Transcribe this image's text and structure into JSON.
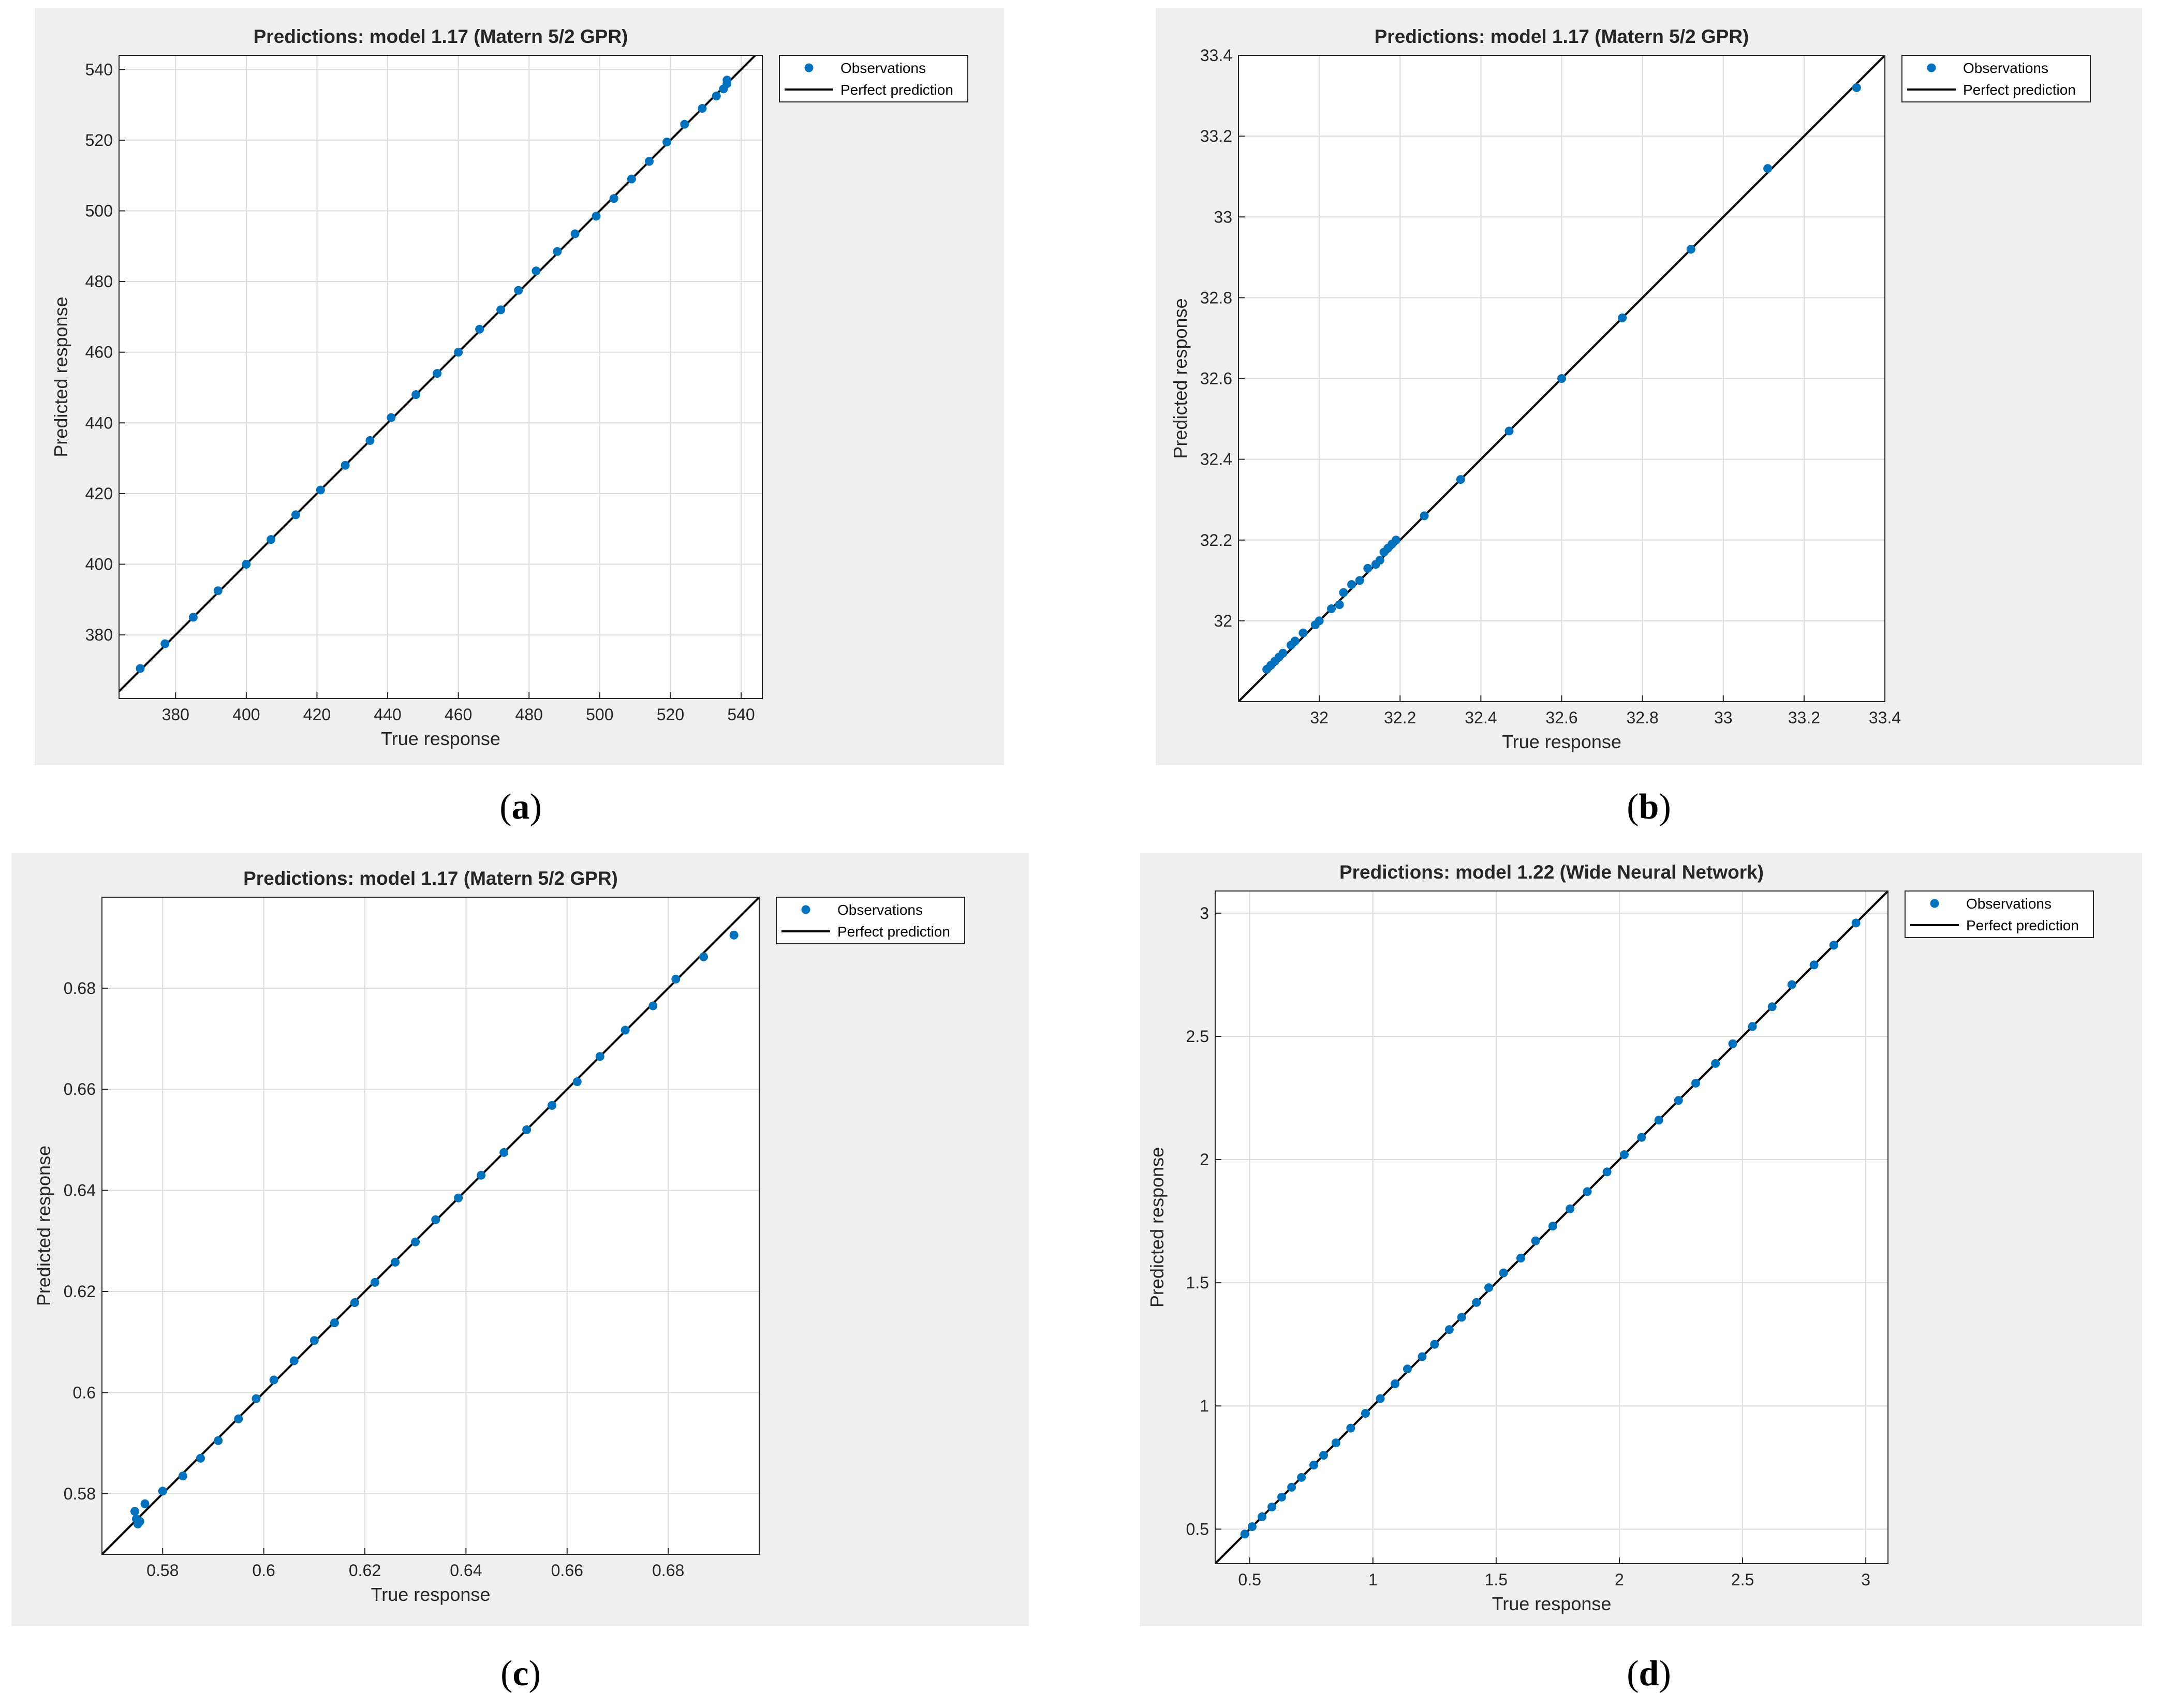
{
  "colors": {
    "marker": "#0072BD",
    "line": "#000000",
    "grid": "#dcdcdc",
    "figure_bg": "#efefef"
  },
  "chart_data": [
    {
      "type": "scatter",
      "caption": "a",
      "title": "Predictions: model 1.17 (Matern 5/2 GPR)",
      "xlabel": "True response",
      "ylabel": "Predicted response",
      "xlim": [
        364,
        546
      ],
      "ylim": [
        362,
        544
      ],
      "xticks": [
        380,
        400,
        420,
        440,
        460,
        480,
        500,
        520,
        540
      ],
      "yticks": [
        380,
        400,
        420,
        440,
        460,
        480,
        500,
        520,
        540
      ],
      "xtick_labels": [
        "380",
        "400",
        "420",
        "440",
        "460",
        "480",
        "500",
        "520",
        "540"
      ],
      "ytick_labels": [
        "380",
        "400",
        "420",
        "440",
        "460",
        "480",
        "500",
        "520",
        "540"
      ],
      "grid": true,
      "legend": {
        "position": "outside-right-top",
        "entries": [
          "Observations",
          "Perfect prediction"
        ]
      },
      "series": [
        {
          "kind": "points",
          "name": "Observations",
          "x": [
            370,
            377,
            385,
            392,
            400,
            407,
            414,
            421,
            428,
            435,
            441,
            448,
            454,
            460,
            466,
            472,
            477,
            482,
            488,
            493,
            499,
            504,
            509,
            514,
            519,
            524,
            529,
            533,
            535,
            536,
            536
          ],
          "y": [
            370.5,
            377.5,
            385,
            392.5,
            400,
            407,
            414,
            421,
            428,
            435,
            441.5,
            448,
            454,
            460,
            466.5,
            472,
            477.5,
            483,
            488.5,
            493.5,
            498.5,
            503.5,
            509,
            514,
            519.5,
            524.5,
            529,
            532.5,
            534.5,
            536,
            537
          ]
        },
        {
          "kind": "line",
          "name": "Perfect prediction",
          "x": [
            364,
            546
          ],
          "y": [
            364,
            546
          ]
        }
      ]
    },
    {
      "type": "scatter",
      "caption": "b",
      "title": "Predictions: model 1.17 (Matern 5/2 GPR)",
      "xlabel": "True response",
      "ylabel": "Predicted response",
      "xlim": [
        31.8,
        33.4
      ],
      "ylim": [
        31.8,
        33.4
      ],
      "xticks": [
        32,
        32.2,
        32.4,
        32.6,
        32.8,
        33,
        33.2,
        33.4
      ],
      "yticks": [
        32,
        32.2,
        32.4,
        32.6,
        32.8,
        33,
        33.2,
        33.4
      ],
      "xtick_labels": [
        "32",
        "32.2",
        "32.4",
        "32.6",
        "32.8",
        "33",
        "33.2",
        "33.4"
      ],
      "ytick_labels": [
        "32",
        "32.2",
        "32.4",
        "32.6",
        "32.8",
        "33",
        "33.2",
        "33.4"
      ],
      "grid": true,
      "legend": {
        "position": "outside-right-top",
        "entries": [
          "Observations",
          "Perfect prediction"
        ]
      },
      "series": [
        {
          "kind": "points",
          "name": "Observations",
          "x": [
            31.87,
            31.88,
            31.89,
            31.9,
            31.91,
            31.93,
            31.94,
            31.96,
            31.99,
            32.0,
            32.03,
            32.05,
            32.06,
            32.08,
            32.1,
            32.12,
            32.14,
            32.15,
            32.16,
            32.17,
            32.18,
            32.19,
            32.26,
            32.35,
            32.47,
            32.6,
            32.75,
            32.92,
            33.11,
            33.33
          ],
          "y": [
            31.88,
            31.89,
            31.9,
            31.91,
            31.92,
            31.94,
            31.95,
            31.97,
            31.99,
            32.0,
            32.03,
            32.04,
            32.07,
            32.09,
            32.1,
            32.13,
            32.14,
            32.15,
            32.17,
            32.18,
            32.19,
            32.2,
            32.26,
            32.35,
            32.47,
            32.6,
            32.75,
            32.92,
            33.12,
            33.32
          ]
        },
        {
          "kind": "line",
          "name": "Perfect prediction",
          "x": [
            31.8,
            33.4
          ],
          "y": [
            31.8,
            33.4
          ]
        }
      ]
    },
    {
      "type": "scatter",
      "caption": "c",
      "title": "Predictions: model 1.17 (Matern 5/2 GPR)",
      "xlabel": "True response",
      "ylabel": "Predicted response",
      "xlim": [
        0.568,
        0.698
      ],
      "ylim": [
        0.568,
        0.698
      ],
      "xticks": [
        0.58,
        0.6,
        0.62,
        0.64,
        0.66,
        0.68
      ],
      "yticks": [
        0.58,
        0.6,
        0.62,
        0.64,
        0.66,
        0.68
      ],
      "xtick_labels": [
        "0.58",
        "0.6",
        "0.62",
        "0.64",
        "0.66",
        "0.68"
      ],
      "ytick_labels": [
        "0.58",
        "0.6",
        "0.62",
        "0.64",
        "0.66",
        "0.68"
      ],
      "grid": true,
      "legend": {
        "position": "outside-right-top",
        "entries": [
          "Observations",
          "Perfect prediction"
        ]
      },
      "series": [
        {
          "kind": "points",
          "name": "Observations",
          "x": [
            0.5745,
            0.5748,
            0.5751,
            0.5755,
            0.5765,
            0.58,
            0.584,
            0.5875,
            0.591,
            0.595,
            0.5985,
            0.602,
            0.606,
            0.61,
            0.614,
            0.618,
            0.622,
            0.626,
            0.63,
            0.634,
            0.6385,
            0.643,
            0.6475,
            0.652,
            0.657,
            0.662,
            0.6665,
            0.6715,
            0.677,
            0.6815,
            0.687,
            0.693
          ],
          "y": [
            0.5765,
            0.575,
            0.574,
            0.5745,
            0.578,
            0.5805,
            0.5835,
            0.587,
            0.5905,
            0.5948,
            0.5988,
            0.6025,
            0.6063,
            0.6103,
            0.6138,
            0.6178,
            0.6218,
            0.6258,
            0.6298,
            0.6342,
            0.6385,
            0.643,
            0.6475,
            0.652,
            0.6568,
            0.6615,
            0.6665,
            0.6717,
            0.6765,
            0.6818,
            0.6862,
            0.6905
          ]
        },
        {
          "kind": "line",
          "name": "Perfect prediction",
          "x": [
            0.568,
            0.698
          ],
          "y": [
            0.568,
            0.698
          ]
        }
      ]
    },
    {
      "type": "scatter",
      "caption": "d",
      "title": "Predictions: model 1.22 (Wide Neural Network)",
      "xlabel": "True response",
      "ylabel": "Predicted response",
      "xlim": [
        0.36,
        3.09
      ],
      "ylim": [
        0.36,
        3.09
      ],
      "xticks": [
        0.5,
        1,
        1.5,
        2,
        2.5,
        3
      ],
      "yticks": [
        0.5,
        1,
        1.5,
        2,
        2.5,
        3
      ],
      "xtick_labels": [
        "0.5",
        "1",
        "1.5",
        "2",
        "2.5",
        "3"
      ],
      "ytick_labels": [
        "0.5",
        "1",
        "1.5",
        "2",
        "2.5",
        "3"
      ],
      "grid": true,
      "legend": {
        "position": "outside-right-top",
        "entries": [
          "Observations",
          "Perfect prediction"
        ]
      },
      "series": [
        {
          "kind": "points",
          "name": "Observations",
          "x": [
            0.48,
            0.51,
            0.55,
            0.59,
            0.63,
            0.67,
            0.71,
            0.76,
            0.8,
            0.85,
            0.91,
            0.97,
            1.03,
            1.09,
            1.14,
            1.2,
            1.25,
            1.31,
            1.36,
            1.42,
            1.47,
            1.53,
            1.6,
            1.66,
            1.73,
            1.8,
            1.87,
            1.95,
            2.02,
            2.09,
            2.16,
            2.24,
            2.31,
            2.39,
            2.46,
            2.54,
            2.62,
            2.7,
            2.79,
            2.87,
            2.96
          ],
          "y": [
            0.48,
            0.51,
            0.55,
            0.59,
            0.63,
            0.67,
            0.71,
            0.76,
            0.8,
            0.85,
            0.91,
            0.97,
            1.03,
            1.09,
            1.15,
            1.2,
            1.25,
            1.31,
            1.36,
            1.42,
            1.48,
            1.54,
            1.6,
            1.67,
            1.73,
            1.8,
            1.87,
            1.95,
            2.02,
            2.09,
            2.16,
            2.24,
            2.31,
            2.39,
            2.47,
            2.54,
            2.62,
            2.71,
            2.79,
            2.87,
            2.96
          ]
        },
        {
          "kind": "line",
          "name": "Perfect prediction",
          "x": [
            0.36,
            3.09
          ],
          "y": [
            0.36,
            3.09
          ]
        }
      ]
    }
  ]
}
